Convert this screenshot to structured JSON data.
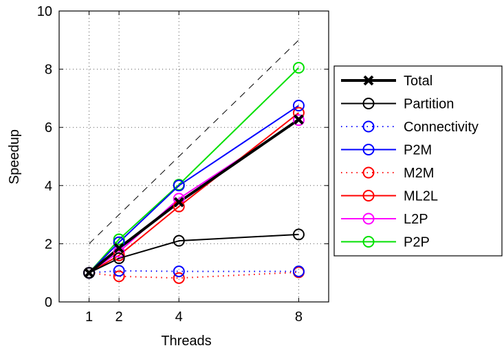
{
  "chart_data": {
    "type": "line",
    "title": "",
    "xlabel": "Threads",
    "ylabel": "Speedup",
    "x": [
      1,
      2,
      4,
      8
    ],
    "xticks": [
      1,
      2,
      4,
      8
    ],
    "xlim": [
      0,
      9
    ],
    "yticks": [
      0,
      2,
      4,
      6,
      8,
      10
    ],
    "ylim": [
      0,
      10
    ],
    "grid": true,
    "legend_position": "outside-right",
    "ideal_line": {
      "x": [
        1,
        8
      ],
      "y": [
        2,
        9
      ],
      "color": "#000000",
      "style": "dashed"
    },
    "series": [
      {
        "name": "Total",
        "values": [
          1.0,
          1.85,
          3.43,
          6.27
        ],
        "color": "#000000",
        "style": "solid",
        "marker": "x",
        "bold": true
      },
      {
        "name": "Partition",
        "values": [
          1.0,
          1.5,
          2.1,
          2.32
        ],
        "color": "#000000",
        "style": "solid",
        "marker": "o",
        "bold": false
      },
      {
        "name": "Connectivity",
        "values": [
          1.0,
          1.07,
          1.05,
          1.05
        ],
        "color": "#0000ff",
        "style": "dotted",
        "marker": "o",
        "bold": false
      },
      {
        "name": "P2M",
        "values": [
          1.0,
          2.05,
          4.0,
          6.75
        ],
        "color": "#0000ff",
        "style": "solid",
        "marker": "o",
        "bold": false
      },
      {
        "name": "M2M",
        "values": [
          1.0,
          0.88,
          0.82,
          1.02
        ],
        "color": "#ff0000",
        "style": "dotted",
        "marker": "o",
        "bold": false
      },
      {
        "name": "ML2L",
        "values": [
          1.0,
          1.6,
          3.28,
          6.5
        ],
        "color": "#ff0000",
        "style": "solid",
        "marker": "o",
        "bold": false
      },
      {
        "name": "L2P",
        "values": [
          1.0,
          1.72,
          3.55,
          6.25
        ],
        "color": "#ff00ff",
        "style": "solid",
        "marker": "o",
        "bold": false
      },
      {
        "name": "P2P",
        "values": [
          1.0,
          2.15,
          4.03,
          8.05
        ],
        "color": "#00e000",
        "style": "solid",
        "marker": "o",
        "bold": false
      }
    ]
  }
}
